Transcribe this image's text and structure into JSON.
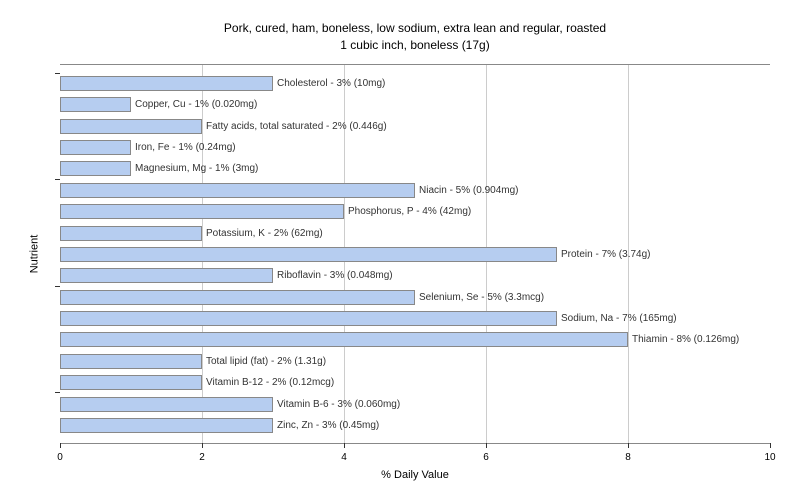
{
  "chart": {
    "type": "bar-horizontal",
    "title_line1": "Pork, cured, ham, boneless, low sodium, extra lean and regular, roasted",
    "title_line2": "1 cubic inch, boneless (17g)",
    "y_axis_label": "Nutrient",
    "x_axis_label": "% Daily Value",
    "xlim": [
      0,
      10
    ],
    "xtick_step": 2,
    "xticks": [
      0,
      2,
      4,
      6,
      8,
      10
    ],
    "bar_color": "#b6cdf0",
    "bar_border_color": "#888888",
    "grid_color": "#cccccc",
    "background_color": "#ffffff",
    "title_fontsize": 12,
    "label_fontsize": 10,
    "axis_label_fontsize": 11,
    "nutrients": [
      {
        "label": "Cholesterol - 3% (10mg)",
        "value": 3
      },
      {
        "label": "Copper, Cu - 1% (0.020mg)",
        "value": 1
      },
      {
        "label": "Fatty acids, total saturated - 2% (0.446g)",
        "value": 2
      },
      {
        "label": "Iron, Fe - 1% (0.24mg)",
        "value": 1
      },
      {
        "label": "Magnesium, Mg - 1% (3mg)",
        "value": 1
      },
      {
        "label": "Niacin - 5% (0.904mg)",
        "value": 5
      },
      {
        "label": "Phosphorus, P - 4% (42mg)",
        "value": 4
      },
      {
        "label": "Potassium, K - 2% (62mg)",
        "value": 2
      },
      {
        "label": "Protein - 7% (3.74g)",
        "value": 7
      },
      {
        "label": "Riboflavin - 3% (0.048mg)",
        "value": 3
      },
      {
        "label": "Selenium, Se - 5% (3.3mcg)",
        "value": 5
      },
      {
        "label": "Sodium, Na - 7% (165mg)",
        "value": 7
      },
      {
        "label": "Thiamin - 8% (0.126mg)",
        "value": 8
      },
      {
        "label": "Total lipid (fat) - 2% (1.31g)",
        "value": 2
      },
      {
        "label": "Vitamin B-12 - 2% (0.12mcg)",
        "value": 2
      },
      {
        "label": "Vitamin B-6 - 3% (0.060mg)",
        "value": 3
      },
      {
        "label": "Zinc, Zn - 3% (0.45mg)",
        "value": 3
      }
    ],
    "y_major_ticks": [
      0,
      5,
      10,
      15
    ]
  }
}
